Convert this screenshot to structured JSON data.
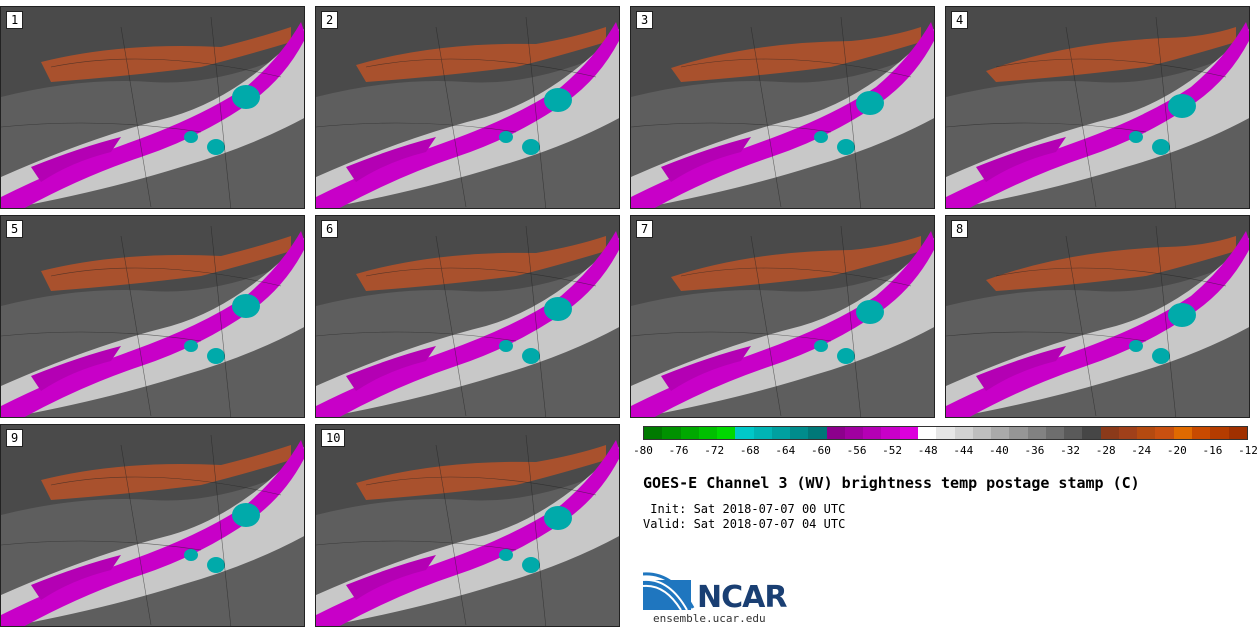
{
  "panels": [
    {
      "label": "1"
    },
    {
      "label": "2"
    },
    {
      "label": "3"
    },
    {
      "label": "4"
    },
    {
      "label": "5"
    },
    {
      "label": "6"
    },
    {
      "label": "7"
    },
    {
      "label": "8"
    },
    {
      "label": "9"
    },
    {
      "label": "10"
    }
  ],
  "colorbar": {
    "colors": [
      "#007a00",
      "#009100",
      "#00a800",
      "#00c000",
      "#00d800",
      "#00c8c8",
      "#00b4b4",
      "#00a0a0",
      "#008c8c",
      "#007878",
      "#8c008c",
      "#a000a0",
      "#b400b4",
      "#c800c8",
      "#dc00dc",
      "#ffffff",
      "#e6e6e6",
      "#d2d2d2",
      "#bebebe",
      "#aaaaaa",
      "#969696",
      "#828282",
      "#6e6e6e",
      "#5a5a5a",
      "#464646",
      "#8b3a1a",
      "#a0401a",
      "#b44a10",
      "#c85010",
      "#e06a00",
      "#c84a00",
      "#b43c00",
      "#a03000"
    ],
    "tick_labels": [
      "-80",
      "-76",
      "-72",
      "-68",
      "-64",
      "-60",
      "-56",
      "-52",
      "-48",
      "-44",
      "-40",
      "-36",
      "-32",
      "-28",
      "-24",
      "-20",
      "-16",
      "-12"
    ]
  },
  "title": "GOES-E Channel 3 (WV) brightness temp postage stamp (C)",
  "init": " Init: Sat 2018-07-07 00 UTC",
  "valid": "Valid: Sat 2018-07-07 04 UTC",
  "logo": {
    "text": "NCAR",
    "url": "ensemble.ucar.edu"
  }
}
